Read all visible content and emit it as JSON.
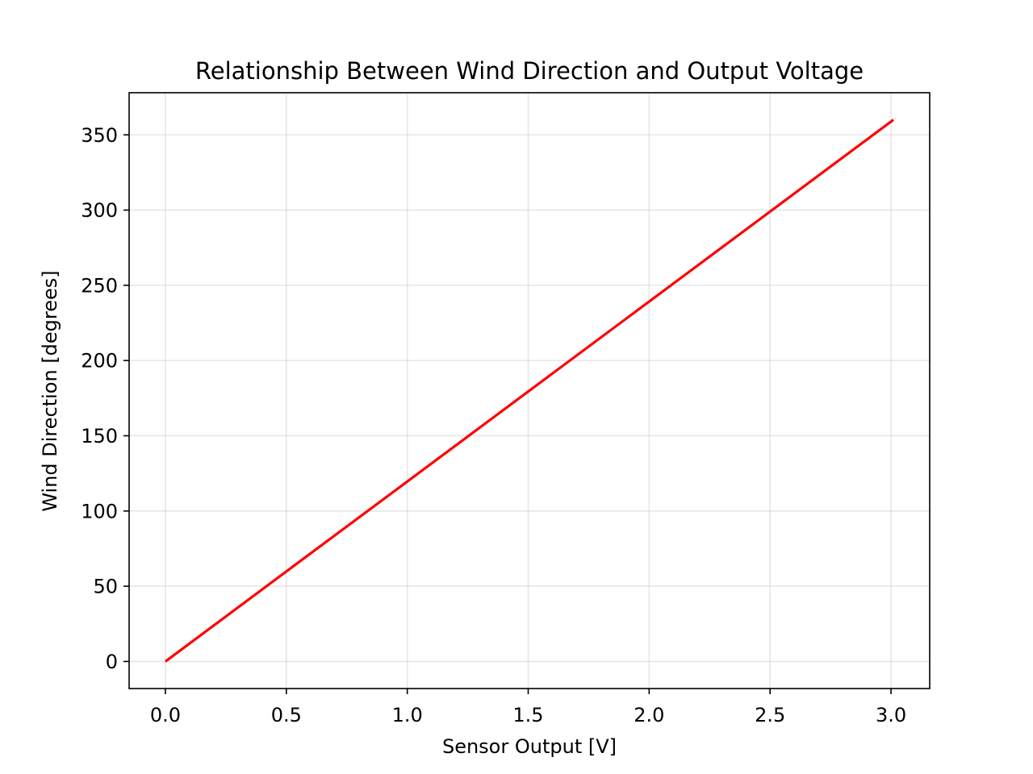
{
  "chart_data": {
    "type": "line",
    "title": "Relationship Between Wind Direction and Output Voltage",
    "xlabel": "Sensor Output [V]",
    "ylabel": "Wind Direction [degrees]",
    "xlim": [
      -0.15,
      3.16
    ],
    "ylim": [
      -18,
      378
    ],
    "x_ticks": [
      0.0,
      0.5,
      1.0,
      1.5,
      2.0,
      2.5,
      3.0
    ],
    "x_tick_labels": [
      "0.0",
      "0.5",
      "1.0",
      "1.5",
      "2.0",
      "2.5",
      "3.0"
    ],
    "y_ticks": [
      0,
      50,
      100,
      150,
      200,
      250,
      300,
      350
    ],
    "y_tick_labels": [
      "0",
      "50",
      "100",
      "150",
      "200",
      "250",
      "300",
      "350"
    ],
    "grid": true,
    "series": [
      {
        "color": "#ff0000",
        "x": [
          0.0,
          3.01
        ],
        "y": [
          0,
          360
        ]
      }
    ]
  }
}
